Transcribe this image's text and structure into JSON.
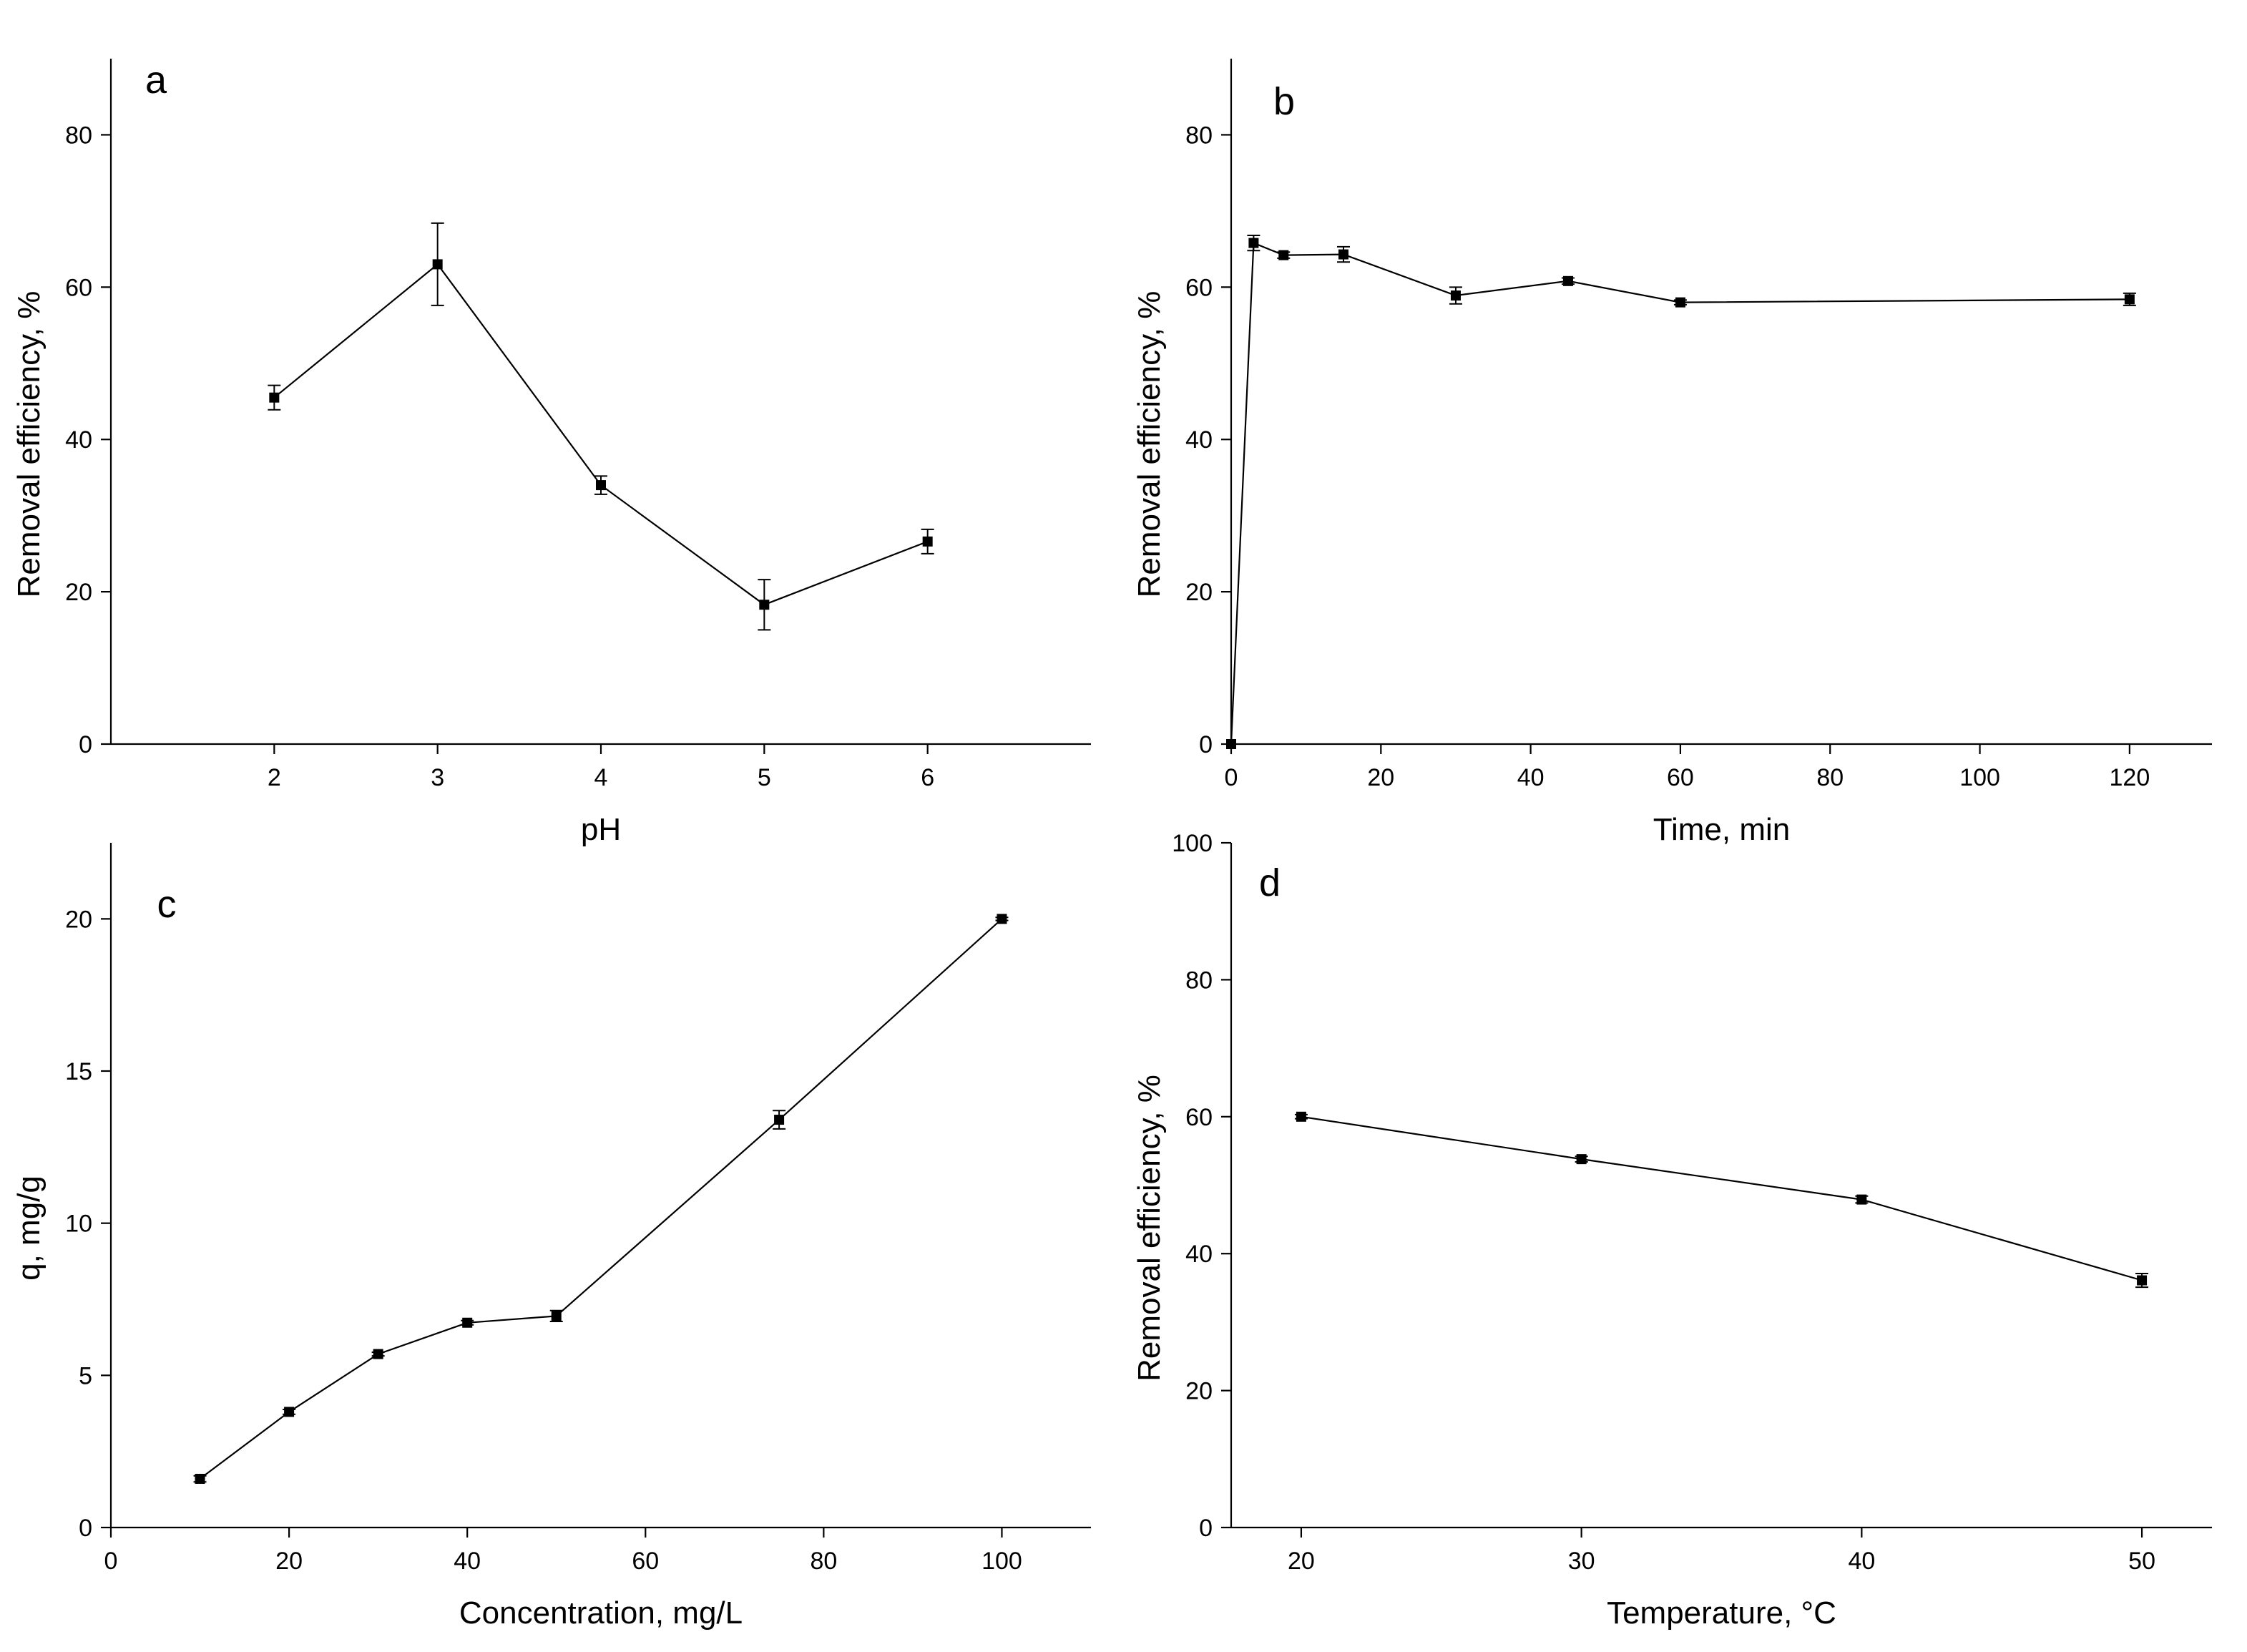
{
  "chart_data": [
    {
      "panel": "a",
      "type": "line",
      "title": "",
      "xlabel": "pH",
      "ylabel": "Removal efficiency, %",
      "xlim": [
        1,
        7
      ],
      "ylim": [
        0,
        90
      ],
      "xticks": [
        2,
        3,
        4,
        5,
        6
      ],
      "yticks": [
        0,
        20,
        40,
        60,
        80
      ],
      "x": [
        2,
        3,
        4,
        5,
        6
      ],
      "y": [
        45.5,
        63,
        34,
        18.3,
        26.6
      ],
      "yerr": [
        1.6,
        5.4,
        1.2,
        3.3,
        1.6
      ]
    },
    {
      "panel": "b",
      "type": "line",
      "title": "",
      "xlabel": "Time, min",
      "ylabel": "Removal efficiency, %",
      "xlim": [
        0,
        131
      ],
      "ylim": [
        0,
        90
      ],
      "xticks": [
        0,
        20,
        40,
        60,
        80,
        100,
        120
      ],
      "yticks": [
        0,
        20,
        40,
        60,
        80
      ],
      "x": [
        0,
        3,
        7,
        15,
        30,
        45,
        60,
        120
      ],
      "y": [
        0,
        65.8,
        64.2,
        64.3,
        58.9,
        60.8,
        58,
        58.4
      ],
      "yerr": [
        0,
        1,
        0.4,
        1,
        1.1,
        0.4,
        0.3,
        0.8
      ]
    },
    {
      "panel": "c",
      "type": "line",
      "title": "",
      "xlabel": "Concentration, mg/L",
      "ylabel": "q, mg/g",
      "xlim": [
        0,
        110
      ],
      "ylim": [
        0,
        22.5
      ],
      "xticks": [
        0,
        20,
        40,
        60,
        80,
        100
      ],
      "yticks": [
        0,
        5,
        10,
        15,
        20
      ],
      "x": [
        10,
        20,
        30,
        40,
        50,
        75,
        100
      ],
      "y": [
        1.6,
        3.8,
        5.7,
        6.73,
        6.95,
        13.4,
        20
      ],
      "yerr": [
        0.1,
        0.08,
        0.06,
        0.07,
        0.18,
        0.3,
        0.05
      ]
    },
    {
      "panel": "d",
      "type": "line",
      "title": "",
      "xlabel": "Temperature, °C",
      "ylabel": "Removal efficiency, %",
      "xlim": [
        17.5,
        52.5
      ],
      "ylim": [
        0,
        100
      ],
      "xticks": [
        20,
        30,
        40,
        50
      ],
      "yticks": [
        0,
        20,
        40,
        60,
        80,
        100
      ],
      "x": [
        20,
        30,
        40,
        50
      ],
      "y": [
        60,
        53.8,
        47.9,
        36.1
      ],
      "yerr": [
        0.3,
        0.4,
        0.5,
        1
      ]
    }
  ]
}
